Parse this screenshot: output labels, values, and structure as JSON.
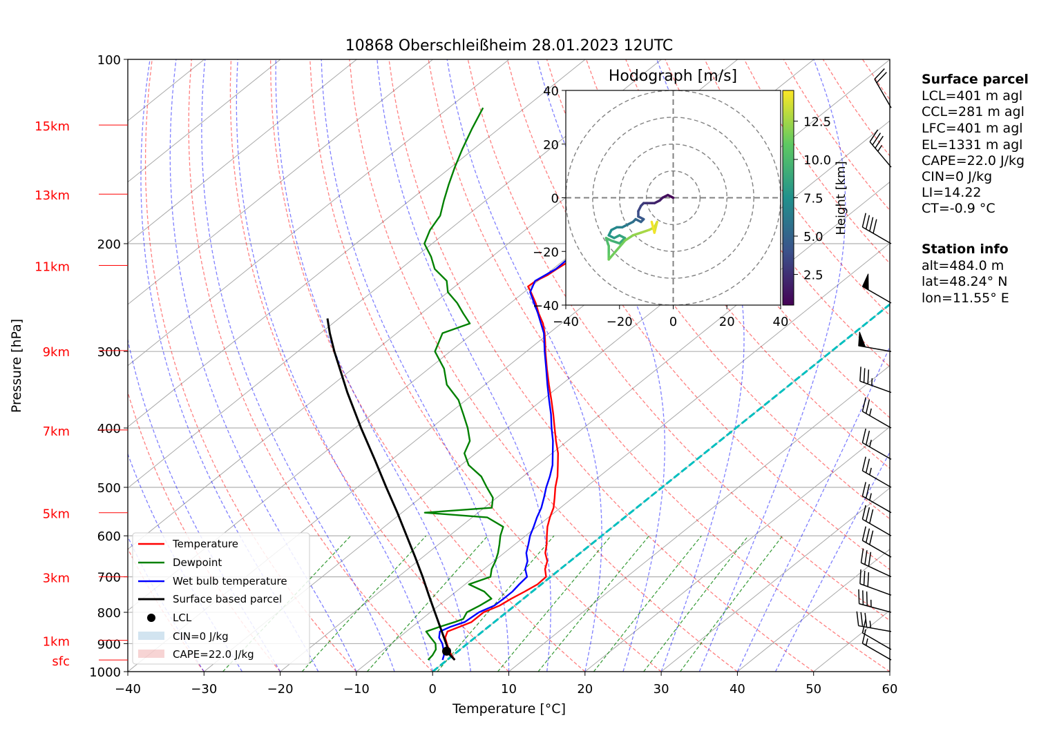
{
  "chart_data": {
    "type": "line",
    "title": "10868 Oberschleißheim 28.01.2023 12UTC",
    "xlabel": "Temperature [°C]",
    "ylabel": "Pressure [hPa]",
    "xlim": [
      -40,
      60
    ],
    "ylim": [
      1000,
      100
    ],
    "y_scale": "log",
    "skew": "skew-T",
    "grid": true,
    "x_ticks": [
      "−40",
      "−30",
      "−20",
      "−10",
      "0",
      "10",
      "20",
      "30",
      "40",
      "50",
      "60"
    ],
    "x_tick_values": [
      -40,
      -30,
      -20,
      -10,
      0,
      10,
      20,
      30,
      40,
      50,
      60
    ],
    "y_ticks": [
      "100",
      "200",
      "300",
      "400",
      "500",
      "600",
      "700",
      "800",
      "900",
      "1000"
    ],
    "y_tick_values": [
      100,
      200,
      300,
      400,
      500,
      600,
      700,
      800,
      900,
      1000
    ],
    "height_labels": [
      {
        "label": "15km",
        "p": 128
      },
      {
        "label": "13km",
        "p": 166
      },
      {
        "label": "11km",
        "p": 217
      },
      {
        "label": "9km",
        "p": 299
      },
      {
        "label": "7km",
        "p": 403
      },
      {
        "label": "5km",
        "p": 550
      },
      {
        "label": "3km",
        "p": 700
      },
      {
        "label": "1km",
        "p": 889
      },
      {
        "label": "sfc",
        "p": 957
      }
    ],
    "legend_position": "lower-left",
    "legend": [
      "Temperature",
      "Dewpoint",
      "Wet bulb temperature",
      "Surface based parcel",
      "LCL",
      "CIN=0 J/kg",
      "CAPE=22.0 J/kg"
    ],
    "series": [
      {
        "name": "Temperature",
        "color": "#ff0000",
        "points": [
          [
            957,
            1.0
          ],
          [
            940,
            -0.2
          ],
          [
            920,
            -1.5
          ],
          [
            900,
            -2.7
          ],
          [
            880,
            -3.9
          ],
          [
            860,
            -4.6
          ],
          [
            845,
            -3.8
          ],
          [
            830,
            -3.0
          ],
          [
            800,
            -3.0
          ],
          [
            780,
            -2.0
          ],
          [
            760,
            -1.6
          ],
          [
            740,
            -1.0
          ],
          [
            720,
            -0.5
          ],
          [
            700,
            -0.6
          ],
          [
            680,
            -2.0
          ],
          [
            660,
            -3.0
          ],
          [
            640,
            -4.6
          ],
          [
            620,
            -5.8
          ],
          [
            600,
            -7.2
          ],
          [
            580,
            -8.6
          ],
          [
            560,
            -9.8
          ],
          [
            540,
            -10.9
          ],
          [
            520,
            -12.4
          ],
          [
            500,
            -14.0
          ],
          [
            480,
            -15.5
          ],
          [
            460,
            -17.3
          ],
          [
            440,
            -19.2
          ],
          [
            420,
            -21.5
          ],
          [
            400,
            -23.8
          ],
          [
            380,
            -26.2
          ],
          [
            360,
            -28.8
          ],
          [
            340,
            -31.6
          ],
          [
            320,
            -34.5
          ],
          [
            300,
            -37.5
          ],
          [
            290,
            -39.0
          ],
          [
            280,
            -40.6
          ],
          [
            270,
            -42.4
          ],
          [
            260,
            -44.6
          ],
          [
            250,
            -46.7
          ],
          [
            240,
            -49.1
          ],
          [
            235,
            -50.4
          ],
          [
            230,
            -50.3
          ],
          [
            225,
            -49.7
          ],
          [
            220,
            -49.5
          ],
          [
            215,
            -49.2
          ],
          [
            210,
            -49.6
          ],
          [
            205,
            -50.2
          ],
          [
            200,
            -50.6
          ],
          [
            195,
            -50.5
          ],
          [
            190,
            -51.0
          ],
          [
            185,
            -51.5
          ],
          [
            180,
            -52.0
          ],
          [
            175,
            -52.5
          ],
          [
            170,
            -53.2
          ],
          [
            165,
            -53.7
          ],
          [
            160,
            -54.2
          ],
          [
            155,
            -54.8
          ],
          [
            150,
            -55.0
          ],
          [
            145,
            -55.7
          ],
          [
            140,
            -56.1
          ],
          [
            135,
            -56.5
          ],
          [
            130,
            -57.3
          ],
          [
            125,
            -58.5
          ],
          [
            120,
            -59.2
          ]
        ]
      },
      {
        "name": "Dewpoint",
        "color": "#008000",
        "points": [
          [
            957,
            -2.5
          ],
          [
            940,
            -2.7
          ],
          [
            920,
            -3.2
          ],
          [
            900,
            -4.2
          ],
          [
            880,
            -5.8
          ],
          [
            860,
            -7.4
          ],
          [
            845,
            -6.4
          ],
          [
            830,
            -5.2
          ],
          [
            820,
            -4.6
          ],
          [
            800,
            -5.2
          ],
          [
            780,
            -4.6
          ],
          [
            760,
            -4.2
          ],
          [
            740,
            -6.3
          ],
          [
            720,
            -9.5
          ],
          [
            700,
            -7.9
          ],
          [
            680,
            -9.0
          ],
          [
            660,
            -9.8
          ],
          [
            640,
            -10.8
          ],
          [
            620,
            -12.0
          ],
          [
            600,
            -13.3
          ],
          [
            580,
            -14.4
          ],
          [
            560,
            -18.0
          ],
          [
            550,
            -27.0
          ],
          [
            540,
            -19.0
          ],
          [
            520,
            -20.5
          ],
          [
            500,
            -23.0
          ],
          [
            480,
            -25.5
          ],
          [
            460,
            -29.0
          ],
          [
            440,
            -31.5
          ],
          [
            420,
            -32.8
          ],
          [
            400,
            -35.2
          ],
          [
            380,
            -38.0
          ],
          [
            360,
            -41.0
          ],
          [
            340,
            -45.0
          ],
          [
            320,
            -48.0
          ],
          [
            300,
            -52.0
          ],
          [
            280,
            -54.0
          ],
          [
            270,
            -52.0
          ],
          [
            260,
            -54.5
          ],
          [
            250,
            -57.0
          ],
          [
            240,
            -60.0
          ],
          [
            230,
            -62.0
          ],
          [
            220,
            -65.5
          ],
          [
            210,
            -68.0
          ],
          [
            200,
            -71.0
          ],
          [
            190,
            -72.5
          ],
          [
            180,
            -73.5
          ],
          [
            170,
            -75.5
          ],
          [
            160,
            -77.5
          ],
          [
            150,
            -79.5
          ],
          [
            140,
            -81.5
          ],
          [
            130,
            -83.5
          ],
          [
            120,
            -85.5
          ]
        ]
      },
      {
        "name": "Wet bulb temperature",
        "color": "#0000ff",
        "points": [
          [
            957,
            -0.6
          ],
          [
            940,
            -1.2
          ],
          [
            920,
            -2.2
          ],
          [
            900,
            -3.3
          ],
          [
            880,
            -4.7
          ],
          [
            860,
            -5.6
          ],
          [
            845,
            -5.0
          ],
          [
            830,
            -3.9
          ],
          [
            800,
            -3.6
          ],
          [
            780,
            -2.7
          ],
          [
            760,
            -2.6
          ],
          [
            740,
            -2.6
          ],
          [
            720,
            -2.9
          ],
          [
            700,
            -3.1
          ],
          [
            680,
            -4.6
          ],
          [
            660,
            -5.6
          ],
          [
            640,
            -7.1
          ],
          [
            620,
            -8.2
          ],
          [
            600,
            -9.4
          ],
          [
            580,
            -10.4
          ],
          [
            560,
            -11.5
          ],
          [
            540,
            -12.5
          ],
          [
            520,
            -13.8
          ],
          [
            500,
            -15.2
          ],
          [
            480,
            -16.5
          ],
          [
            460,
            -18.0
          ],
          [
            440,
            -19.9
          ],
          [
            420,
            -21.9
          ],
          [
            400,
            -24.2
          ],
          [
            380,
            -26.5
          ],
          [
            360,
            -29.1
          ],
          [
            340,
            -31.8
          ],
          [
            320,
            -34.6
          ],
          [
            300,
            -37.6
          ],
          [
            280,
            -40.7
          ],
          [
            260,
            -44.7
          ],
          [
            240,
            -49.2
          ],
          [
            230,
            -50.4
          ],
          [
            220,
            -49.6
          ],
          [
            210,
            -49.7
          ],
          [
            200,
            -50.7
          ],
          [
            190,
            -51.1
          ],
          [
            180,
            -52.1
          ],
          [
            170,
            -53.3
          ],
          [
            160,
            -54.3
          ],
          [
            150,
            -55.1
          ],
          [
            140,
            -56.2
          ],
          [
            130,
            -57.4
          ],
          [
            120,
            -59.3
          ]
        ]
      },
      {
        "name": "Surface based parcel",
        "color": "#000000",
        "points": [
          [
            957,
            1.0
          ],
          [
            935,
            -0.8
          ],
          [
            920,
            -1.6
          ],
          [
            900,
            -2.8
          ],
          [
            850,
            -6.0
          ],
          [
            800,
            -9.4
          ],
          [
            750,
            -13.0
          ],
          [
            700,
            -16.8
          ],
          [
            650,
            -21.0
          ],
          [
            600,
            -25.6
          ],
          [
            550,
            -30.6
          ],
          [
            500,
            -36.2
          ],
          [
            450,
            -42.3
          ],
          [
            400,
            -49.2
          ],
          [
            350,
            -56.8
          ],
          [
            300,
            -65.2
          ],
          [
            280,
            -68.8
          ],
          [
            265,
            -71.5
          ]
        ]
      }
    ],
    "lcl": {
      "label": "LCL",
      "p": 926,
      "t": -1.5
    },
    "freezing_level_line": {
      "color": "#00bfbf",
      "t": 0
    },
    "wind_barbs": [
      {
        "p": 957,
        "speed_kt": 15,
        "dir_deg": 300
      },
      {
        "p": 920,
        "speed_kt": 10,
        "dir_deg": 300
      },
      {
        "p": 860,
        "speed_kt": 35,
        "dir_deg": 280
      },
      {
        "p": 800,
        "speed_kt": 35,
        "dir_deg": 285
      },
      {
        "p": 750,
        "speed_kt": 30,
        "dir_deg": 290
      },
      {
        "p": 700,
        "speed_kt": 30,
        "dir_deg": 295
      },
      {
        "p": 650,
        "speed_kt": 30,
        "dir_deg": 300
      },
      {
        "p": 600,
        "speed_kt": 30,
        "dir_deg": 300
      },
      {
        "p": 550,
        "speed_kt": 25,
        "dir_deg": 300
      },
      {
        "p": 500,
        "speed_kt": 25,
        "dir_deg": 300
      },
      {
        "p": 450,
        "speed_kt": 25,
        "dir_deg": 300
      },
      {
        "p": 400,
        "speed_kt": 25,
        "dir_deg": 300
      },
      {
        "p": 350,
        "speed_kt": 35,
        "dir_deg": 290
      },
      {
        "p": 300,
        "speed_kt": 50,
        "dir_deg": 280
      },
      {
        "p": 250,
        "speed_kt": 50,
        "dir_deg": 300
      },
      {
        "p": 200,
        "speed_kt": 40,
        "dir_deg": 300
      },
      {
        "p": 150,
        "speed_kt": 35,
        "dir_deg": 320
      },
      {
        "p": 120,
        "speed_kt": 20,
        "dir_deg": 330
      }
    ],
    "hodograph": {
      "title": "Hodograph [m/s]",
      "xlim": [
        -40,
        40
      ],
      "ylim": [
        -40,
        40
      ],
      "x_ticks": [
        "−40",
        "−20",
        "0",
        "20",
        "40"
      ],
      "y_ticks": [
        "40",
        "20",
        "0",
        "−20",
        "−40"
      ],
      "rings": [
        10,
        20,
        30,
        40
      ],
      "colorbar_label": "Height [km]",
      "colorbar_ticks": [
        "2.5",
        "5.0",
        "7.5",
        "10.0",
        "12.5"
      ],
      "colorbar_values": [
        2.5,
        5.0,
        7.5,
        10.0,
        12.5
      ],
      "height_range_km": [
        0.5,
        14.5
      ],
      "points": [
        [
          0,
          0,
          0.5
        ],
        [
          -2,
          1,
          0.8
        ],
        [
          -4,
          0,
          1.2
        ],
        [
          -5,
          -1,
          1.6
        ],
        [
          -7,
          -2,
          2.0
        ],
        [
          -9,
          -2,
          2.4
        ],
        [
          -11,
          -2,
          2.8
        ],
        [
          -12,
          -3,
          3.2
        ],
        [
          -13,
          -5,
          3.6
        ],
        [
          -13,
          -7,
          4.0
        ],
        [
          -11,
          -8,
          4.4
        ],
        [
          -12,
          -9,
          4.8
        ],
        [
          -14,
          -8,
          5.2
        ],
        [
          -15,
          -9,
          5.6
        ],
        [
          -17,
          -10,
          6.0
        ],
        [
          -19,
          -11,
          6.4
        ],
        [
          -21,
          -11,
          6.8
        ],
        [
          -23,
          -12,
          7.2
        ],
        [
          -24,
          -14,
          7.6
        ],
        [
          -22,
          -15,
          8.0
        ],
        [
          -20,
          -14,
          8.4
        ],
        [
          -18,
          -15,
          8.8
        ],
        [
          -20,
          -17,
          9.2
        ],
        [
          -23,
          -16,
          9.6
        ],
        [
          -25,
          -15,
          10.0
        ],
        [
          -24,
          -18,
          10.4
        ],
        [
          -24,
          -21,
          10.8
        ],
        [
          -24,
          -23,
          11.2
        ],
        [
          -18,
          -16,
          11.6
        ],
        [
          -15,
          -14,
          12.0
        ],
        [
          -12,
          -13,
          12.4
        ],
        [
          -9,
          -12,
          12.8
        ],
        [
          -7,
          -11,
          13.2
        ],
        [
          -6,
          -9,
          13.6
        ],
        [
          -7,
          -13,
          14.0
        ],
        [
          -8,
          -9,
          14.5
        ]
      ]
    },
    "surface_parcel": {
      "heading": "Surface parcel",
      "lines": [
        "LCL=401 m agl",
        "CCL=281 m agl",
        "LFC=401 m agl",
        "EL=1331 m agl",
        "CAPE=22.0 J/kg",
        "CIN=0 J/kg",
        "LI=14.22",
        "CT=-0.9 °C"
      ]
    },
    "station_info": {
      "heading": "Station info",
      "lines": [
        "alt=484.0 m",
        "lat=48.24° N",
        "lon=11.55° E"
      ]
    }
  }
}
